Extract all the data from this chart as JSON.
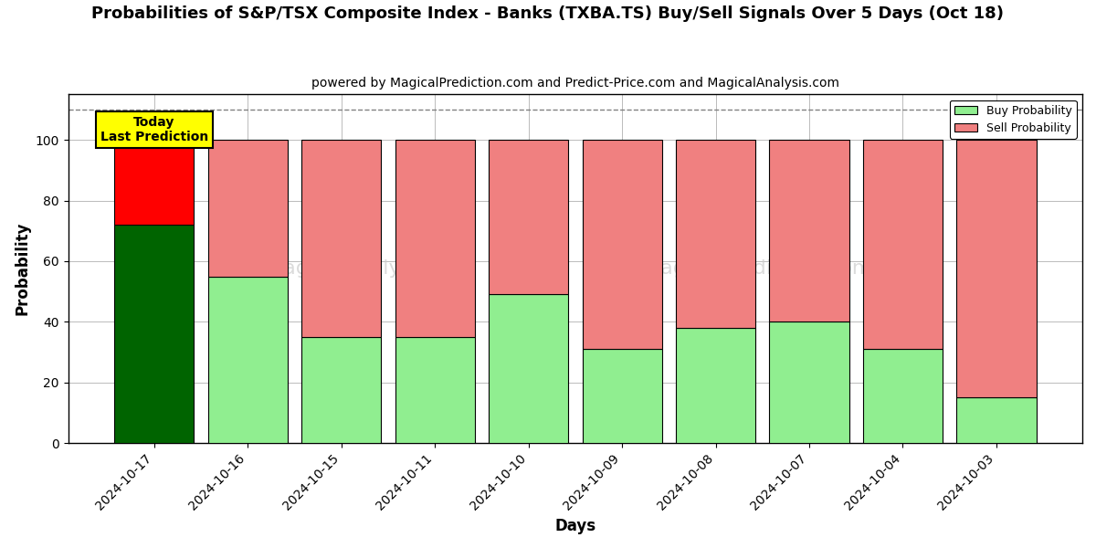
{
  "title": "Probabilities of S&P/TSX Composite Index - Banks (TXBA.TS) Buy/Sell Signals Over 5 Days (Oct 18)",
  "subtitle": "powered by MagicalPrediction.com and Predict-Price.com and MagicalAnalysis.com",
  "xlabel": "Days",
  "ylabel": "Probability",
  "categories": [
    "2024-10-17",
    "2024-10-16",
    "2024-10-15",
    "2024-10-11",
    "2024-10-10",
    "2024-10-09",
    "2024-10-08",
    "2024-10-07",
    "2024-10-04",
    "2024-10-03"
  ],
  "buy_values": [
    72,
    55,
    35,
    35,
    49,
    31,
    38,
    40,
    31,
    15
  ],
  "sell_values": [
    28,
    45,
    65,
    65,
    51,
    69,
    62,
    60,
    69,
    85
  ],
  "today_index": 0,
  "today_buy_color": "#006400",
  "today_sell_color": "#ff0000",
  "other_buy_color": "#90EE90",
  "other_sell_color": "#F08080",
  "today_label_bg": "#ffff00",
  "today_label_text": "Today\nLast Prediction",
  "legend_buy_label": "Buy Probability",
  "legend_sell_label": "Sell Probability",
  "ylim": [
    0,
    115
  ],
  "yticks": [
    0,
    20,
    40,
    60,
    80,
    100
  ],
  "grid_color": "#bbbbbb",
  "dashed_line_y": 110,
  "background_color": "#ffffff",
  "bar_edgecolor": "#000000",
  "bar_width": 0.85
}
